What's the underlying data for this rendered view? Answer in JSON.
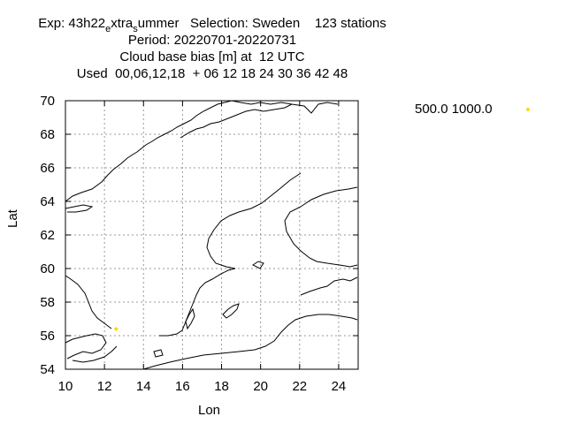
{
  "header": {
    "line1_prefix": "Exp: 43h22",
    "line1_sub1": "e",
    "line1_mid": "xtra",
    "line1_sub2": "s",
    "line1_suffix": "ummer   Selection: Sweden    123 stations",
    "line2": "Period: 20220701-20220731",
    "line3": "Cloud base bias [m] at  12 UTC",
    "line4": "Used  00,06,12,18  + 06 12 18 24 30 36 42 48"
  },
  "legend": {
    "label": "500.0 1000.0",
    "marker_color": "#ffd700"
  },
  "chart_data": {
    "type": "scatter",
    "xlabel": "Lon",
    "ylabel": "Lat",
    "xlim": [
      10,
      25
    ],
    "ylim": [
      54,
      70
    ],
    "x_ticks": [
      "10",
      "12",
      "14",
      "16",
      "18",
      "20",
      "22",
      "24"
    ],
    "y_ticks": [
      "54",
      "56",
      "58",
      "60",
      "62",
      "64",
      "66",
      "68",
      "70"
    ],
    "grid": true,
    "series": [
      {
        "name": "500.0 1000.0",
        "color": "#ffd700",
        "points": [
          {
            "lon": 12.6,
            "lat": 56.4
          }
        ]
      }
    ]
  }
}
